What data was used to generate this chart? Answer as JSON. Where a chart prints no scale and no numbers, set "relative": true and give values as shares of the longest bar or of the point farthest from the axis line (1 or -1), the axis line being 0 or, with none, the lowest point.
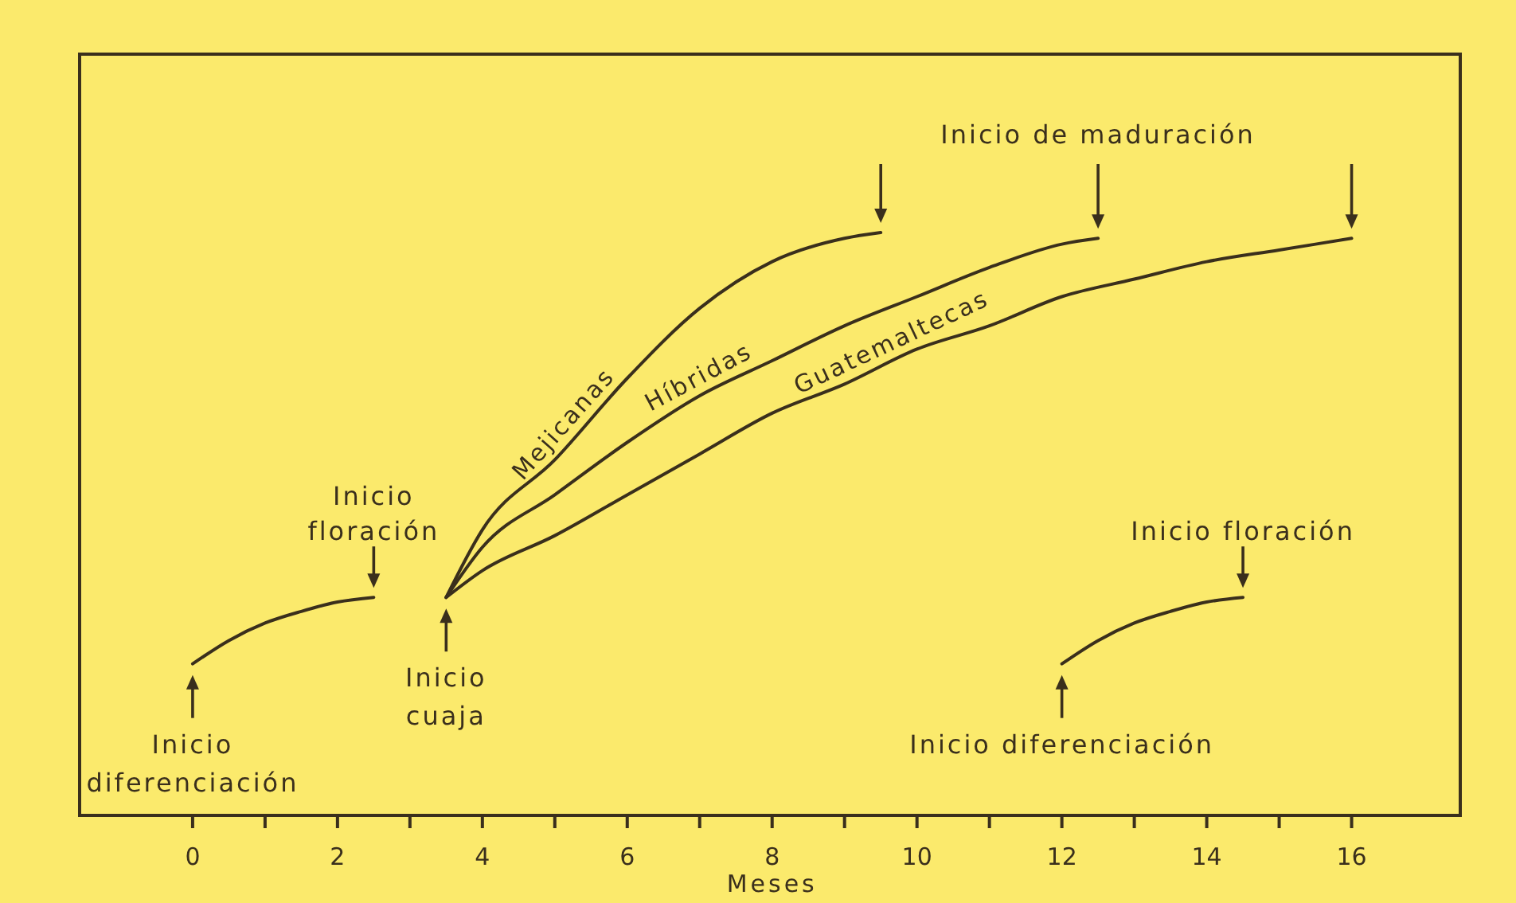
{
  "chart_data": {
    "type": "line",
    "xlabel": "Meses",
    "relative": true,
    "xlim": [
      -1.56,
      17.5
    ],
    "xticks": [
      0,
      {
        "value": 1,
        "label": null
      },
      2,
      {
        "value": 3,
        "label": null
      },
      4,
      {
        "value": 5,
        "label": null
      },
      6,
      {
        "value": 7,
        "label": null
      },
      8,
      {
        "value": 9,
        "label": null
      },
      10,
      {
        "value": 11,
        "label": null
      },
      12,
      {
        "value": 13,
        "label": null
      },
      14,
      {
        "value": 15,
        "label": null
      },
      16
    ],
    "tick_labels": "x",
    "grid": false,
    "marker": "none",
    "line_style": "solid",
    "series": [
      {
        "color": "#3a2f1c",
        "x": [
          0,
          0.5,
          1,
          1.5,
          2,
          2.5
        ],
        "values": [
          0.26,
          0.3,
          0.33,
          0.35,
          0.366,
          0.374
        ]
      },
      {
        "name": "Mejicanas",
        "color": "#3a2f1c",
        "x": [
          3.5,
          4,
          5,
          6,
          7,
          8,
          9,
          9.5
        ],
        "values": [
          0.374,
          0.49,
          0.61,
          0.75,
          0.87,
          0.95,
          0.99,
          1
        ]
      },
      {
        "name": "Híbridas",
        "color": "#3a2f1c",
        "x": [
          3.5,
          4,
          5,
          6,
          7,
          8,
          9,
          10,
          11,
          12,
          12.5
        ],
        "values": [
          0.374,
          0.46,
          0.55,
          0.64,
          0.72,
          0.78,
          0.84,
          0.89,
          0.94,
          0.98,
          0.99
        ]
      },
      {
        "name": "Guatemaltecas",
        "color": "#3a2f1c",
        "x": [
          3.5,
          4,
          5,
          6,
          7,
          8,
          9,
          10,
          11,
          12,
          13,
          14,
          15,
          16
        ],
        "values": [
          0.374,
          0.42,
          0.48,
          0.55,
          0.62,
          0.69,
          0.74,
          0.8,
          0.84,
          0.89,
          0.92,
          0.95,
          0.97,
          0.99
        ]
      },
      {
        "color": "#3a2f1c",
        "x": [
          12,
          12.5,
          13,
          13.5,
          14,
          14.5
        ],
        "values": [
          0.26,
          0.3,
          0.33,
          0.35,
          0.366,
          0.374
        ]
      }
    ],
    "annotations": [
      {
        "text": "Inicio\ndiferenciación",
        "x": 0,
        "y": 0.26
      },
      {
        "text": "Inicio\nfloración",
        "x": 2.5,
        "y": 0.374
      },
      {
        "text": "Inicio\ncuaja",
        "x": 3.5,
        "y": 0.374
      },
      "Inicio de maduración",
      {
        "text": "Inicio floración",
        "x": 14.5,
        "y": 0.374
      },
      {
        "text": "Inicio diferenciación",
        "x": 12,
        "y": 0.26
      }
    ]
  }
}
